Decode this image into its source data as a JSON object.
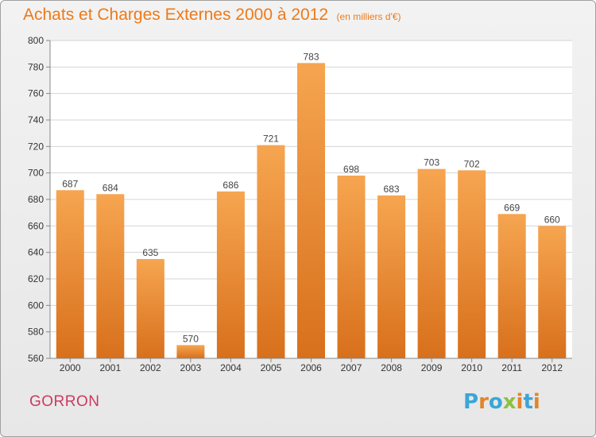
{
  "header": {
    "title": "Achats et Charges Externes 2000 à 2012",
    "unit": "(en milliers d'€)"
  },
  "footer": {
    "commune": "GORRON",
    "logo": "Proxiti"
  },
  "colors": {
    "bar_top": "#f6a550",
    "bar_bottom": "#d8701c",
    "title": "#ed7a1a",
    "commune": "#cc3a5f",
    "logo_letters": [
      "#3aa6d8",
      "#e1852a",
      "#3aa6d8",
      "#8cc23c",
      "#e1852a",
      "#3aa6d8",
      "#e1852a"
    ]
  },
  "chart_data": {
    "type": "bar",
    "title": "Achats et Charges Externes 2000 à 2012",
    "subtitle": "(en milliers d'€)",
    "categories": [
      "2000",
      "2001",
      "2002",
      "2003",
      "2004",
      "2005",
      "2006",
      "2007",
      "2008",
      "2009",
      "2010",
      "2011",
      "2012"
    ],
    "values": [
      687,
      684,
      635,
      570,
      686,
      721,
      783,
      698,
      683,
      703,
      702,
      669,
      660
    ],
    "ylim": [
      560,
      800
    ],
    "yticks": [
      560,
      580,
      600,
      620,
      640,
      660,
      680,
      700,
      720,
      740,
      760,
      780,
      800
    ],
    "grid": true,
    "legend": "none"
  }
}
